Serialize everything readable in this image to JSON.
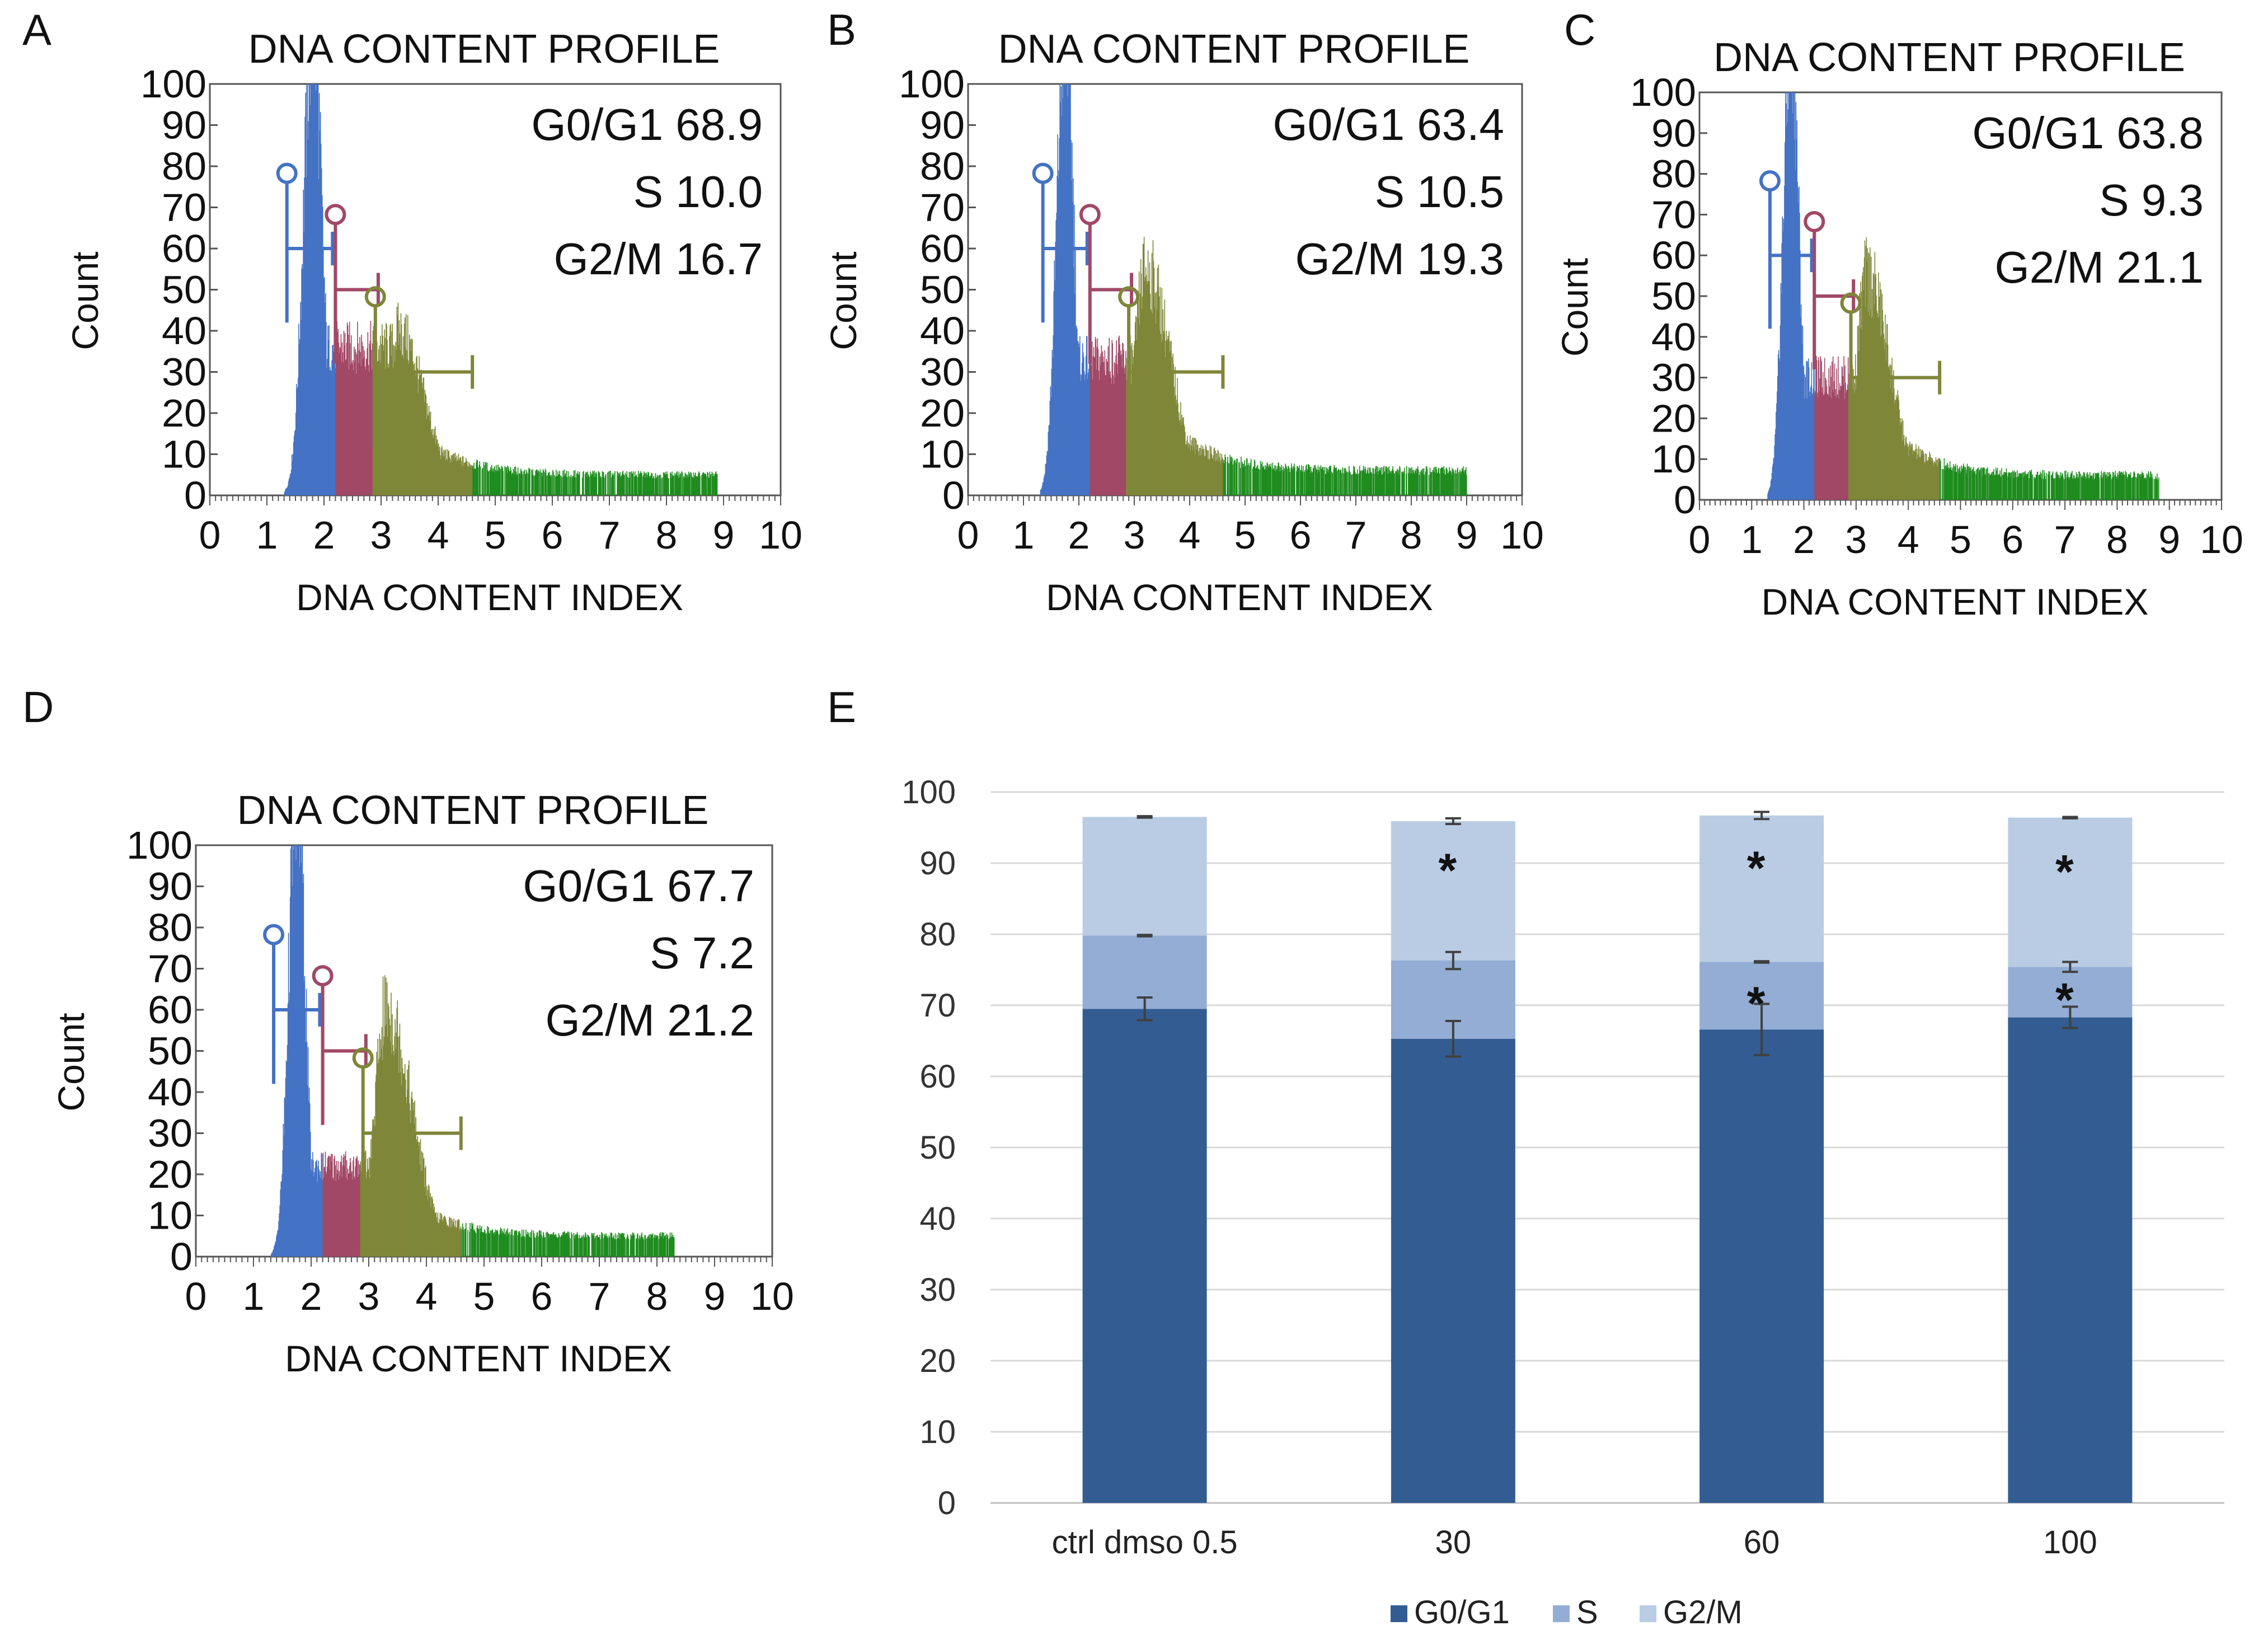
{
  "colors": {
    "g0g1": "#4472C4",
    "s": "#A14866",
    "g2m": "#7F8639",
    "tail": "#1E8C1E",
    "bar_g0g1": "#335D92",
    "bar_s": "#93ADD5",
    "bar_g2m": "#B9CCE4",
    "grid": "#D9D9D9"
  },
  "chart_data": [
    {
      "panel": "A",
      "type": "area",
      "title": "DNA CONTENT PROFILE",
      "xlabel": "DNA CONTENT INDEX",
      "ylabel": "Count",
      "xlim": [
        0,
        10
      ],
      "ylim": [
        0,
        100
      ],
      "x_ticks": [
        0,
        1,
        2,
        3,
        4,
        5,
        6,
        7,
        8,
        9,
        10
      ],
      "y_ticks": [
        0,
        10,
        20,
        30,
        40,
        50,
        60,
        70,
        80,
        90,
        100
      ],
      "stats": [
        {
          "label": "G0/G1",
          "value": 68.9
        },
        {
          "label": "S",
          "value": 10.0
        },
        {
          "label": "G2/M",
          "value": 16.7
        }
      ],
      "gates": [
        {
          "phase": "G0/G1",
          "start": 1.35,
          "end": 2.15,
          "marker_y": 78
        },
        {
          "phase": "S",
          "start": 2.2,
          "end": 2.95,
          "marker_y": 68
        },
        {
          "phase": "G2/M",
          "start": 2.9,
          "end": 4.6,
          "marker_y": 48
        }
      ],
      "segments": {
        "g1_end": 2.2,
        "s_end": 2.85,
        "g2_end": 4.6
      },
      "profile": {
        "g1_center": 1.8,
        "g1_sigma": 0.16,
        "g1_peak": 100,
        "s_level": 36,
        "g2_center": 3.3,
        "g2_peak": 40,
        "tail_level": 5,
        "tail_end": 8.9
      }
    },
    {
      "panel": "B",
      "type": "area",
      "title": "DNA CONTENT PROFILE",
      "xlabel": "DNA CONTENT INDEX",
      "ylabel": "Count",
      "xlim": [
        0,
        10
      ],
      "ylim": [
        0,
        100
      ],
      "x_ticks": [
        0,
        1,
        2,
        3,
        4,
        5,
        6,
        7,
        8,
        9,
        10
      ],
      "y_ticks": [
        0,
        10,
        20,
        30,
        40,
        50,
        60,
        70,
        80,
        90,
        100
      ],
      "stats": [
        {
          "label": "G0/G1",
          "value": 63.4
        },
        {
          "label": "S",
          "value": 10.5
        },
        {
          "label": "G2/M",
          "value": 19.3
        }
      ],
      "gates": [
        {
          "phase": "G0/G1",
          "start": 1.35,
          "end": 2.15,
          "marker_y": 78
        },
        {
          "phase": "S",
          "start": 2.2,
          "end": 2.95,
          "marker_y": 68
        },
        {
          "phase": "G2/M",
          "start": 2.9,
          "end": 4.6,
          "marker_y": 48
        }
      ],
      "segments": {
        "g1_end": 2.2,
        "s_end": 2.85,
        "g2_end": 4.6
      },
      "profile": {
        "g1_center": 1.75,
        "g1_sigma": 0.15,
        "g1_peak": 100,
        "s_level": 33,
        "g2_center": 3.2,
        "g2_peak": 55,
        "tail_level": 6,
        "tail_end": 9.0
      }
    },
    {
      "panel": "C",
      "type": "area",
      "title": "DNA CONTENT PROFILE",
      "xlabel": "DNA CONTENT INDEX",
      "ylabel": "Count",
      "xlim": [
        0,
        10
      ],
      "ylim": [
        0,
        100
      ],
      "x_ticks": [
        0,
        1,
        2,
        3,
        4,
        5,
        6,
        7,
        8,
        9,
        10
      ],
      "y_ticks": [
        0,
        10,
        20,
        30,
        40,
        50,
        60,
        70,
        80,
        90,
        100
      ],
      "stats": [
        {
          "label": "G0/G1",
          "value": 63.8
        },
        {
          "label": "S",
          "value": 9.3
        },
        {
          "label": "G2/M",
          "value": 21.1
        }
      ],
      "gates": [
        {
          "phase": "G0/G1",
          "start": 1.35,
          "end": 2.15,
          "marker_y": 78
        },
        {
          "phase": "S",
          "start": 2.2,
          "end": 2.95,
          "marker_y": 68
        },
        {
          "phase": "G2/M",
          "start": 2.9,
          "end": 4.6,
          "marker_y": 48
        }
      ],
      "segments": {
        "g1_end": 2.2,
        "s_end": 2.85,
        "g2_end": 4.6
      },
      "profile": {
        "g1_center": 1.75,
        "g1_sigma": 0.15,
        "g1_peak": 100,
        "s_level": 30,
        "g2_center": 3.2,
        "g2_peak": 55,
        "tail_level": 6,
        "tail_end": 8.8
      }
    },
    {
      "panel": "D",
      "type": "area",
      "title": "DNA CONTENT PROFILE",
      "xlabel": "DNA CONTENT INDEX",
      "ylabel": "Count",
      "xlim": [
        0,
        10
      ],
      "ylim": [
        0,
        100
      ],
      "x_ticks": [
        0,
        1,
        2,
        3,
        4,
        5,
        6,
        7,
        8,
        9,
        10
      ],
      "y_ticks": [
        0,
        10,
        20,
        30,
        40,
        50,
        60,
        70,
        80,
        90,
        100
      ],
      "stats": [
        {
          "label": "G0/G1",
          "value": 67.7
        },
        {
          "label": "S",
          "value": 7.2
        },
        {
          "label": "G2/M",
          "value": 21.2
        }
      ],
      "gates": [
        {
          "phase": "G0/G1",
          "start": 1.35,
          "end": 2.15,
          "marker_y": 78
        },
        {
          "phase": "S",
          "start": 2.2,
          "end": 2.95,
          "marker_y": 68
        },
        {
          "phase": "G2/M",
          "start": 2.9,
          "end": 4.6,
          "marker_y": 48
        }
      ],
      "segments": {
        "g1_end": 2.2,
        "s_end": 2.85,
        "g2_end": 4.6
      },
      "profile": {
        "g1_center": 1.75,
        "g1_sigma": 0.14,
        "g1_peak": 100,
        "s_level": 22,
        "g2_center": 3.3,
        "g2_peak": 60,
        "tail_level": 5,
        "tail_end": 8.3
      }
    },
    {
      "panel": "E",
      "type": "bar",
      "stacked": true,
      "categories": [
        "ctrl dmso 0.5",
        "30",
        "60",
        "100"
      ],
      "series": [
        {
          "name": "G0/G1",
          "values": [
            69.5,
            65.3,
            66.6,
            68.3
          ],
          "errors": [
            1.6,
            2.5,
            3.6,
            1.5
          ],
          "significant": [
            false,
            false,
            false,
            false
          ]
        },
        {
          "name": "S",
          "values": [
            10.3,
            11.0,
            9.5,
            7.1
          ],
          "errors": [
            0.1,
            1.2,
            0.1,
            0.7
          ],
          "significant": [
            false,
            false,
            true,
            true
          ]
        },
        {
          "name": "G2/M",
          "values": [
            16.7,
            19.6,
            20.6,
            21.0
          ],
          "errors": [
            0.1,
            0.4,
            0.5,
            0.1
          ],
          "significant": [
            false,
            true,
            true,
            true
          ]
        }
      ],
      "significance_marker": "*",
      "ylim": [
        0,
        100
      ],
      "y_ticks": [
        0,
        10,
        20,
        30,
        40,
        50,
        60,
        70,
        80,
        90,
        100
      ],
      "grid": true,
      "legend": [
        "G0/G1",
        "S",
        "G2/M"
      ],
      "legend_position": "bottom"
    }
  ]
}
